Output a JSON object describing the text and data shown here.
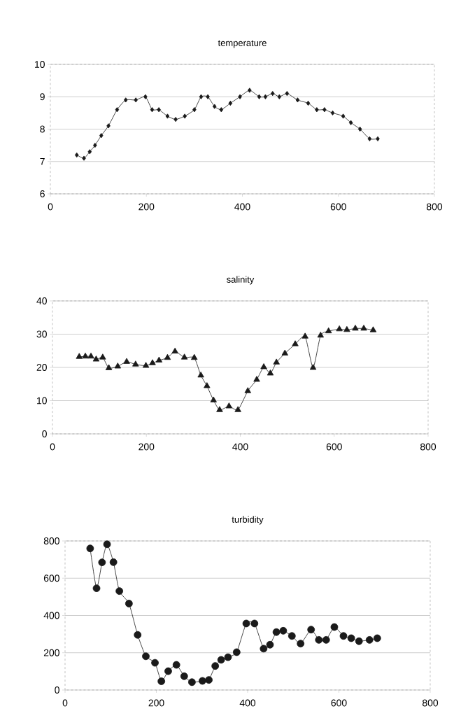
{
  "chart_data": [
    {
      "type": "line",
      "title": "temperature",
      "marker": "diamond",
      "grid": "y",
      "color": "#1a1a1a",
      "xlim": [
        0,
        800
      ],
      "xticks": [
        0,
        200,
        400,
        600,
        800
      ],
      "ylim": [
        6,
        10
      ],
      "yticks": [
        6,
        7,
        8,
        9,
        10
      ],
      "x": [
        55,
        70,
        82,
        93,
        106,
        121,
        139,
        157,
        178,
        198,
        212,
        226,
        244,
        261,
        280,
        300,
        314,
        328,
        342,
        356,
        375,
        395,
        415,
        435,
        448,
        463,
        477,
        493,
        515,
        537,
        555,
        571,
        588,
        610,
        626,
        645,
        665,
        682
      ],
      "values": [
        7.2,
        7.1,
        7.3,
        7.5,
        7.8,
        8.1,
        8.6,
        8.9,
        8.9,
        9.0,
        8.6,
        8.6,
        8.4,
        8.3,
        8.4,
        8.6,
        9.0,
        9.0,
        8.7,
        8.6,
        8.8,
        9.0,
        9.2,
        9.0,
        9.0,
        9.1,
        9.0,
        9.1,
        8.9,
        8.8,
        8.6,
        8.6,
        8.5,
        8.4,
        8.2,
        8.0,
        7.7,
        7.7
      ]
    },
    {
      "type": "line",
      "title": "salinity",
      "marker": "triangle",
      "grid": "y",
      "color": "#1a1a1a",
      "xlim": [
        0,
        800
      ],
      "xticks": [
        0,
        200,
        400,
        600,
        800
      ],
      "ylim": [
        0,
        40
      ],
      "yticks": [
        0,
        10,
        20,
        30,
        40
      ],
      "x": [
        57,
        70,
        82,
        93,
        107,
        120,
        139,
        158,
        177,
        199,
        213,
        227,
        245,
        261,
        281,
        302,
        316,
        329,
        343,
        356,
        376,
        395,
        416,
        435,
        450,
        464,
        477,
        495,
        517,
        538,
        555,
        571,
        588,
        611,
        627,
        645,
        663,
        683
      ],
      "values": [
        23.2,
        23.3,
        23.3,
        22.4,
        23.0,
        19.8,
        20.3,
        21.7,
        20.9,
        20.5,
        21.3,
        22.1,
        22.9,
        24.8,
        23.0,
        22.9,
        17.6,
        14.4,
        10.1,
        7.2,
        8.3,
        7.2,
        12.9,
        16.3,
        20.1,
        18.2,
        21.5,
        24.2,
        27.0,
        29.3,
        19.9,
        29.6,
        30.9,
        31.5,
        31.3,
        31.7,
        31.7,
        31.2
      ]
    },
    {
      "type": "line",
      "title": "turbidity",
      "marker": "circle",
      "grid": "y",
      "color": "#1a1a1a",
      "xlim": [
        0,
        800
      ],
      "xticks": [
        0,
        200,
        400,
        600,
        800
      ],
      "ylim": [
        0,
        800
      ],
      "yticks": [
        0,
        200,
        400,
        600,
        800
      ],
      "x": [
        55,
        69,
        81,
        92,
        106,
        119,
        140,
        159,
        177,
        197,
        211,
        226,
        244,
        261,
        278,
        301,
        315,
        329,
        342,
        357,
        376,
        397,
        415,
        435,
        449,
        463,
        478,
        497,
        516,
        539,
        556,
        572,
        590,
        610,
        627,
        644,
        667,
        684
      ],
      "values": [
        760,
        546,
        685,
        782,
        686,
        531,
        464,
        296,
        181,
        146,
        47,
        101,
        135,
        74,
        42,
        49,
        54,
        129,
        162,
        176,
        203,
        357,
        357,
        222,
        243,
        311,
        318,
        290,
        249,
        324,
        269,
        269,
        338,
        290,
        278,
        262,
        269,
        278
      ]
    }
  ]
}
